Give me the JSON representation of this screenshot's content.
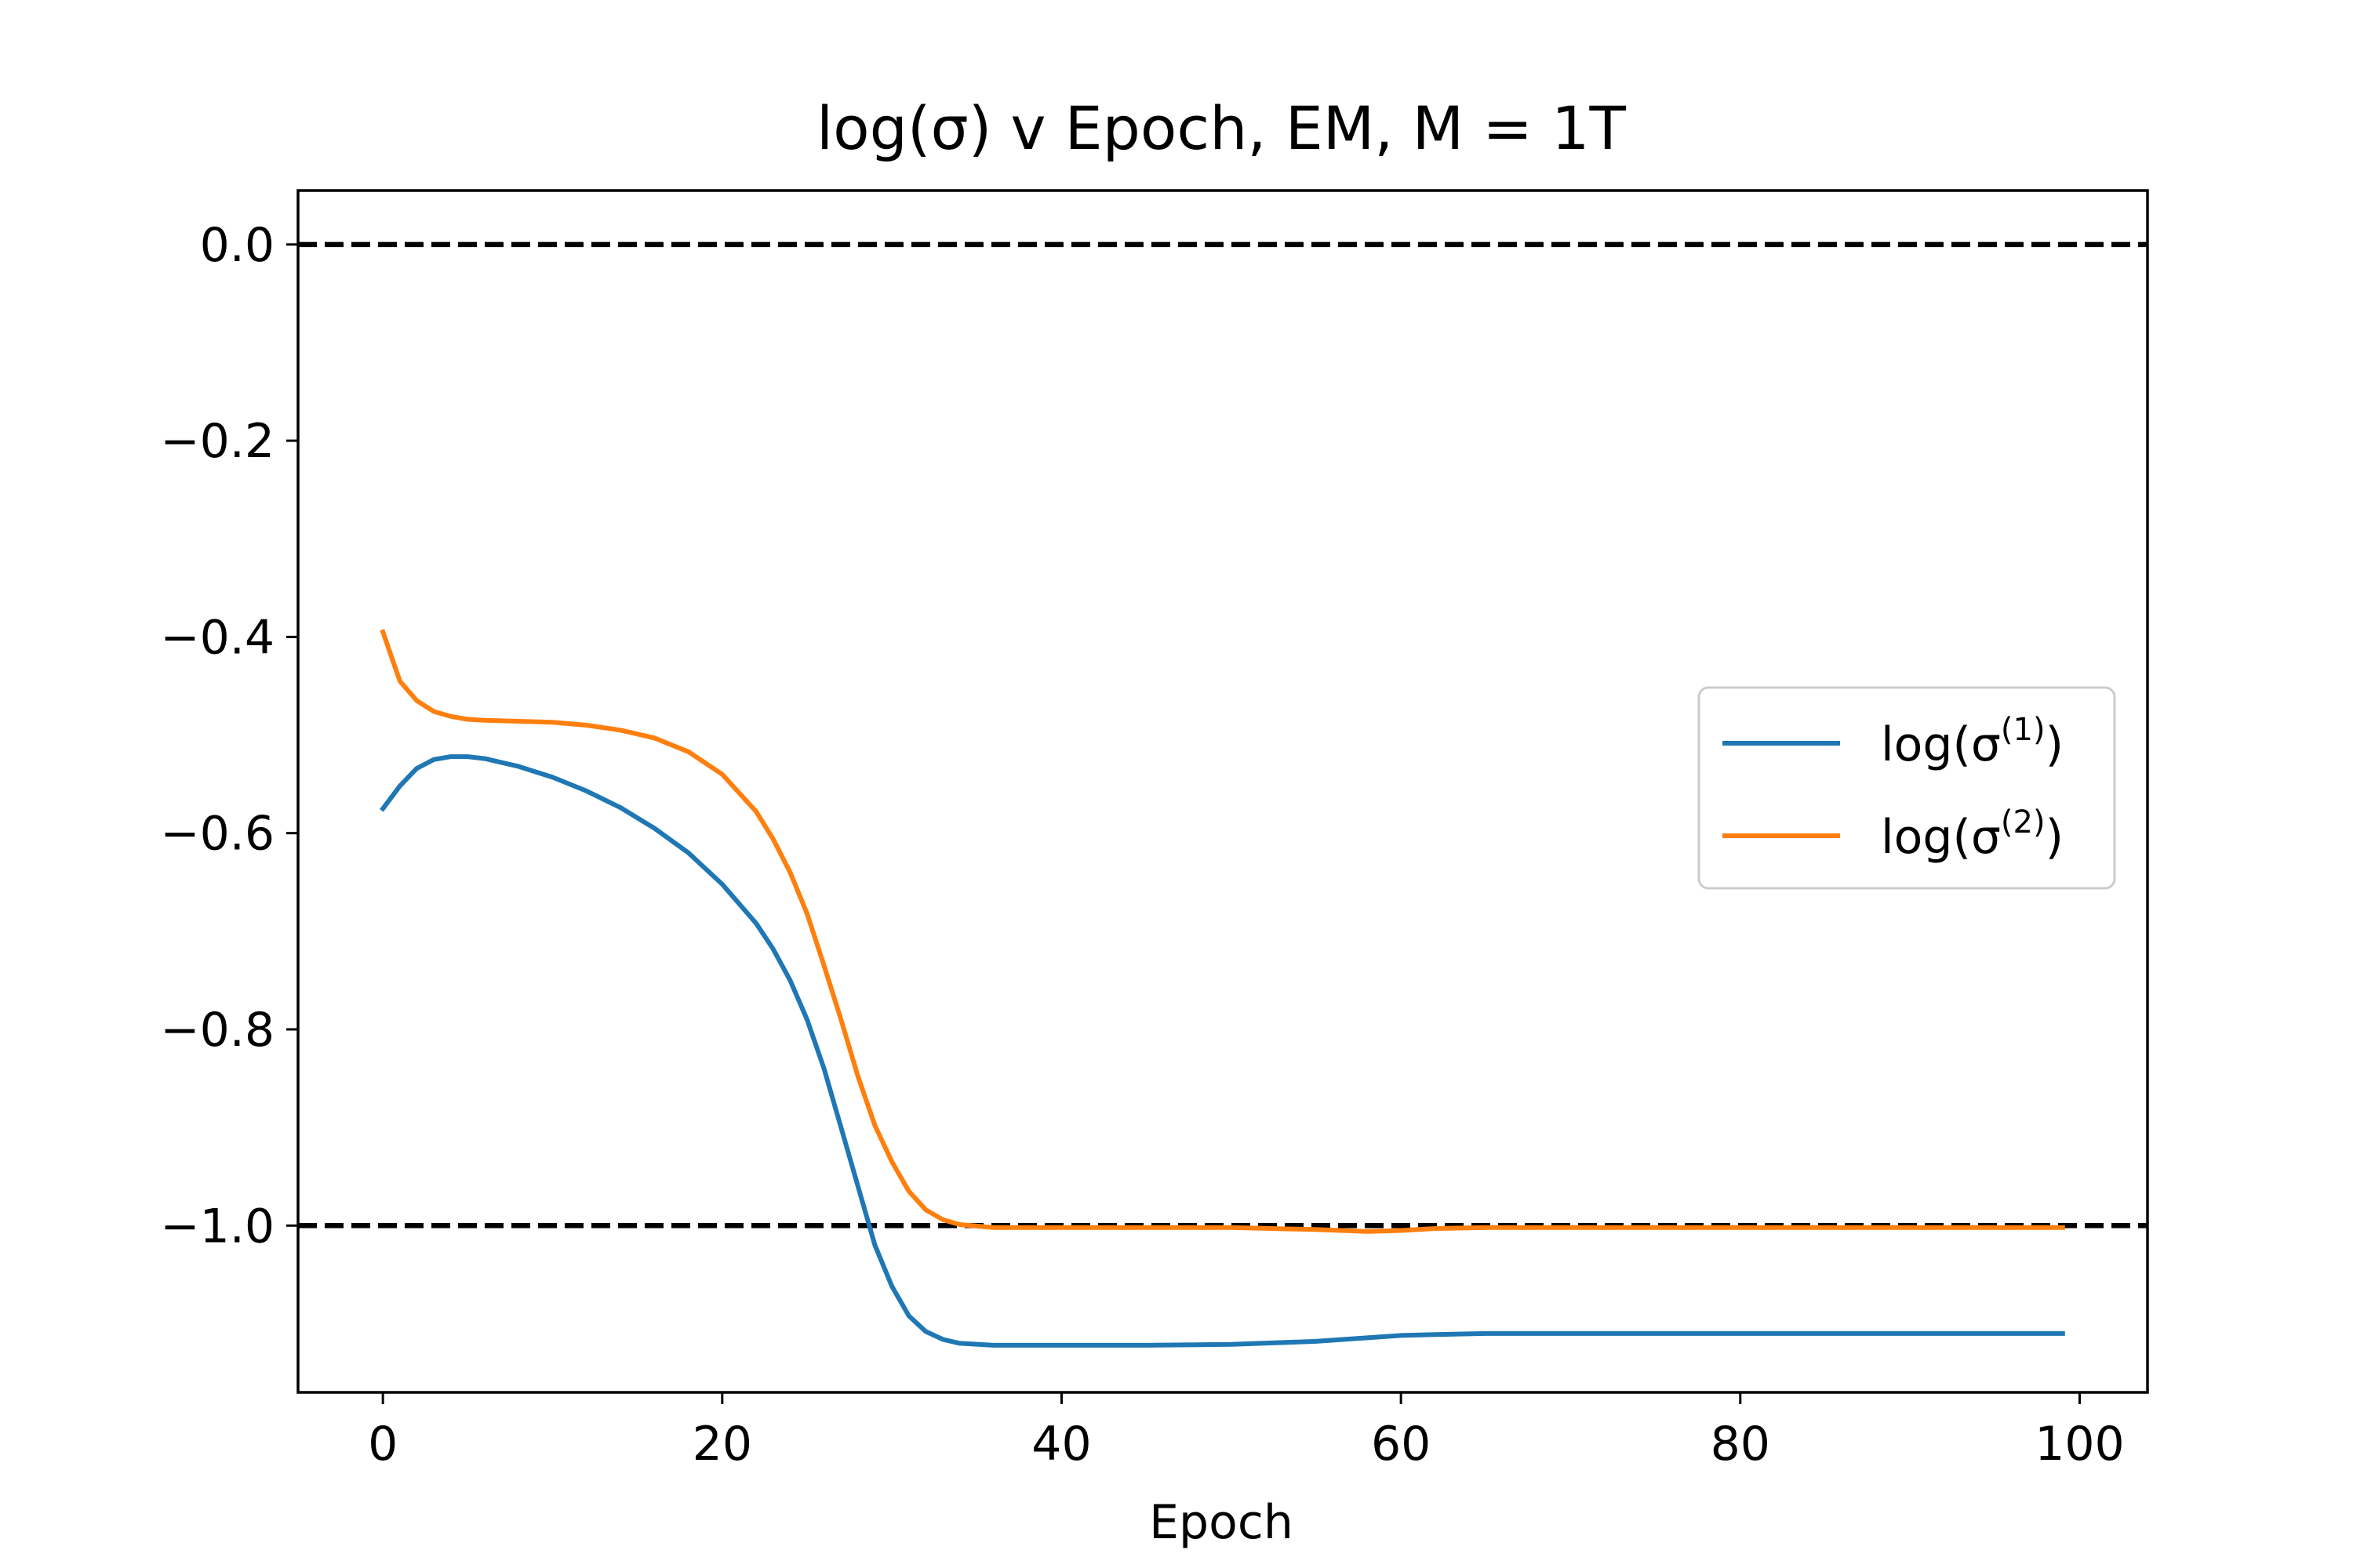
{
  "chart_data": {
    "type": "line",
    "title": "log(σ) v Epoch, EM, M = 1T",
    "xlabel": "Epoch",
    "ylabel": "",
    "xlim": [
      -5,
      104
    ],
    "ylim": [
      -1.17,
      0.055
    ],
    "x_ticks": [
      0,
      20,
      40,
      60,
      80,
      100
    ],
    "y_ticks": [
      0.0,
      -0.2,
      -0.4,
      -0.6,
      -0.8,
      -1.0
    ],
    "x_tick_labels": [
      "0",
      "20",
      "40",
      "60",
      "80",
      "100"
    ],
    "y_tick_labels": [
      "0.0",
      "−0.2",
      "−0.4",
      "−0.6",
      "−0.8",
      "−1.0"
    ],
    "grid": false,
    "legend_position": "center-right",
    "reference_lines": [
      {
        "y": 0.0,
        "style": "dashed",
        "color": "#000000"
      },
      {
        "y": -1.0,
        "style": "dashed",
        "color": "#000000"
      }
    ],
    "series": [
      {
        "name": "log(σ(1))",
        "legend_base": "log(σ",
        "legend_sup": "(1)",
        "legend_close": ")",
        "color": "#1f77b4",
        "x": [
          0,
          1,
          2,
          3,
          4,
          5,
          6,
          8,
          10,
          12,
          14,
          16,
          18,
          20,
          22,
          23,
          24,
          25,
          26,
          27,
          28,
          29,
          30,
          31,
          32,
          33,
          34,
          36,
          40,
          45,
          50,
          55,
          60,
          62,
          65,
          70,
          80,
          90,
          99
        ],
        "y": [
          -0.575,
          -0.552,
          -0.534,
          -0.525,
          -0.522,
          -0.522,
          -0.524,
          -0.532,
          -0.543,
          -0.557,
          -0.574,
          -0.595,
          -0.62,
          -0.652,
          -0.692,
          -0.718,
          -0.75,
          -0.79,
          -0.84,
          -0.9,
          -0.96,
          -1.02,
          -1.062,
          -1.092,
          -1.108,
          -1.116,
          -1.12,
          -1.122,
          -1.122,
          -1.122,
          -1.121,
          -1.118,
          -1.112,
          -1.111,
          -1.11,
          -1.11,
          -1.11,
          -1.11,
          -1.11
        ]
      },
      {
        "name": "log(σ(2))",
        "legend_base": "log(σ",
        "legend_sup": "(2)",
        "legend_close": ")",
        "color": "#ff7f0e",
        "x": [
          0,
          1,
          2,
          3,
          4,
          5,
          6,
          8,
          10,
          12,
          14,
          16,
          18,
          20,
          22,
          23,
          24,
          25,
          26,
          27,
          28,
          29,
          30,
          31,
          32,
          33,
          34,
          36,
          40,
          45,
          50,
          55,
          58,
          60,
          62,
          65,
          70,
          80,
          90,
          99
        ],
        "y": [
          -0.395,
          -0.445,
          -0.465,
          -0.476,
          -0.481,
          -0.484,
          -0.485,
          -0.486,
          -0.487,
          -0.49,
          -0.495,
          -0.503,
          -0.517,
          -0.54,
          -0.578,
          -0.606,
          -0.64,
          -0.682,
          -0.735,
          -0.79,
          -0.848,
          -0.898,
          -0.935,
          -0.965,
          -0.984,
          -0.994,
          -0.999,
          -1.002,
          -1.002,
          -1.002,
          -1.002,
          -1.004,
          -1.006,
          -1.005,
          -1.003,
          -1.002,
          -1.002,
          -1.002,
          -1.002,
          -1.002
        ]
      }
    ]
  }
}
